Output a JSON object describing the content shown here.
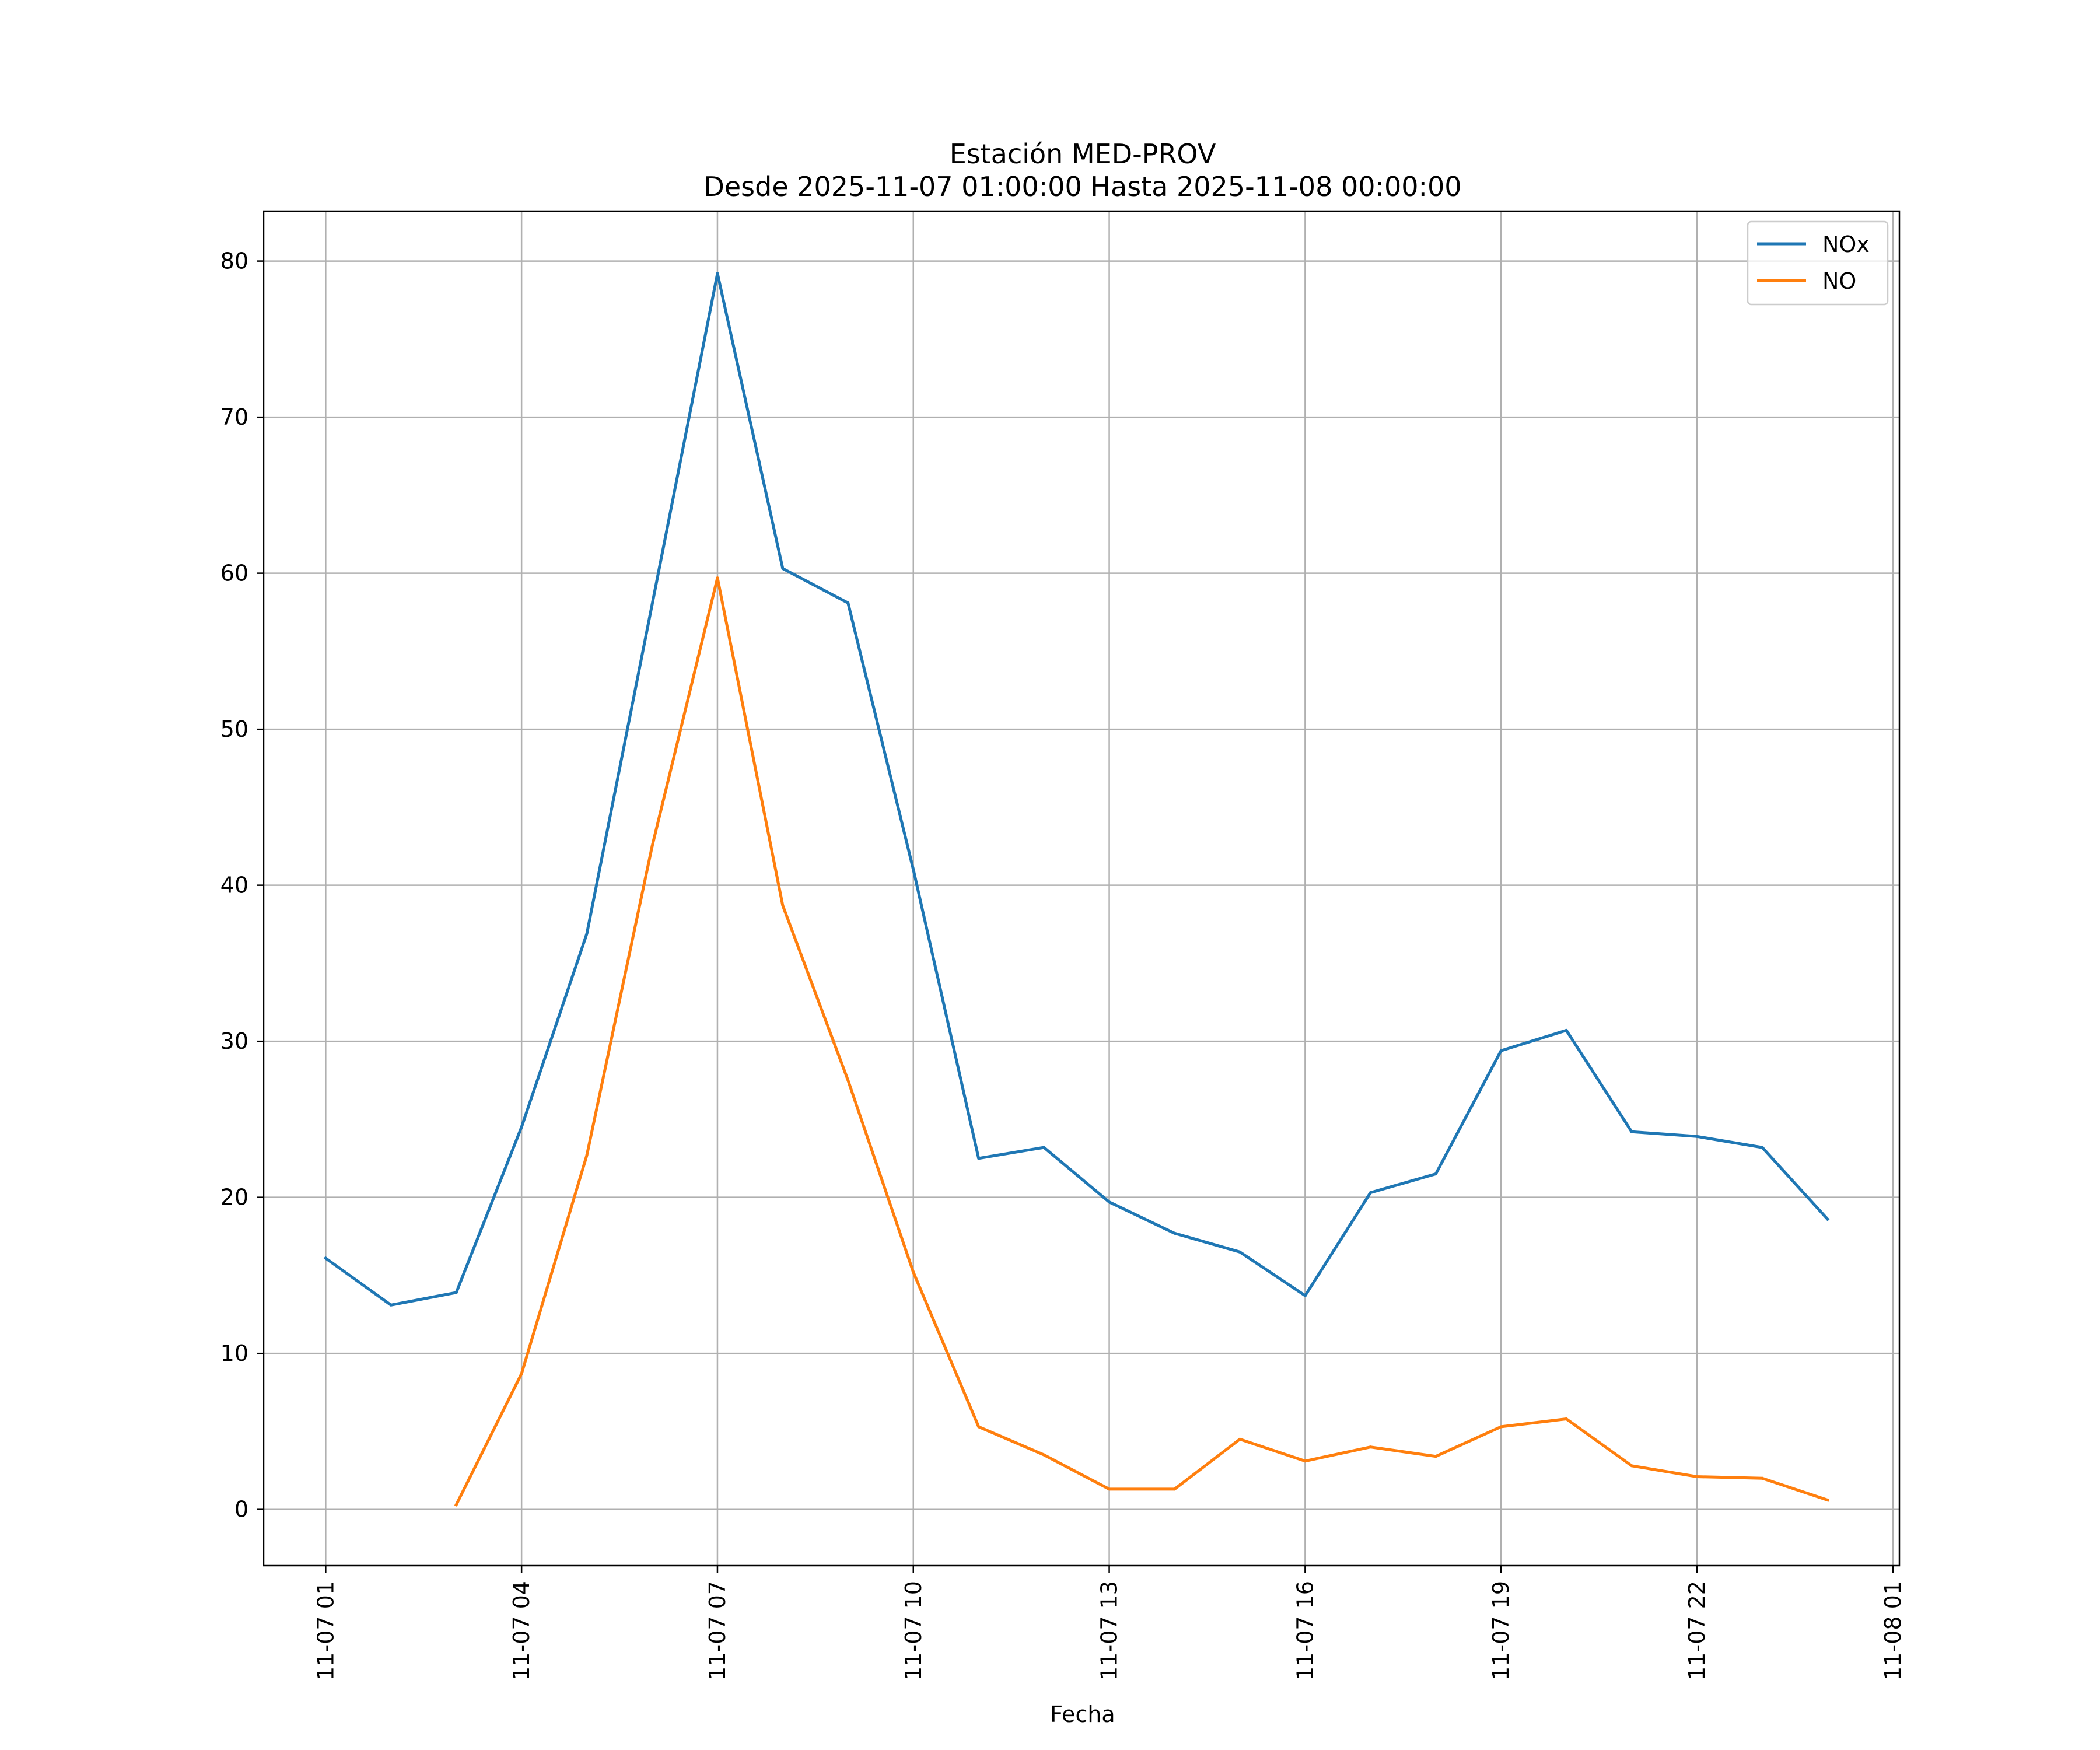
{
  "chart_data": {
    "type": "line",
    "title": "Estación MED-PROV",
    "subtitle": "Desde 2025-11-07 01:00:00 Hasta 2025-11-08 00:00:00",
    "xlabel": "Fecha",
    "ylabel": "",
    "x_hours": [
      1,
      2,
      3,
      4,
      5,
      6,
      7,
      8,
      9,
      10,
      11,
      12,
      13,
      14,
      15,
      16,
      17,
      18,
      19,
      20,
      21,
      22,
      23,
      24
    ],
    "xlim": [
      0.05,
      25.1
    ],
    "ylim": [
      -3.6,
      83.2
    ],
    "x_ticks": [
      1,
      4,
      7,
      10,
      13,
      16,
      19,
      22,
      25
    ],
    "x_tick_labels": [
      "11-07 01",
      "11-07 04",
      "11-07 07",
      "11-07 10",
      "11-07 13",
      "11-07 16",
      "11-07 19",
      "11-07 22",
      "11-08 01"
    ],
    "y_ticks": [
      0,
      10,
      20,
      30,
      40,
      50,
      60,
      70,
      80
    ],
    "y_tick_labels": [
      "0",
      "10",
      "20",
      "30",
      "40",
      "50",
      "60",
      "70",
      "80"
    ],
    "grid": true,
    "legend_position": "top-right",
    "series": [
      {
        "name": "NOx",
        "color": "#1f77b4",
        "values": [
          16.1,
          13.1,
          13.9,
          24.5,
          36.9,
          58.0,
          79.2,
          60.3,
          58.1,
          41.0,
          22.5,
          23.2,
          19.7,
          17.7,
          16.5,
          13.7,
          20.3,
          21.5,
          29.4,
          30.7,
          24.2,
          23.9,
          23.2,
          18.6
        ]
      },
      {
        "name": "NO",
        "color": "#ff7f0e",
        "values": [
          null,
          null,
          0.3,
          8.7,
          22.7,
          42.5,
          59.7,
          38.7,
          27.5,
          15.2,
          5.3,
          3.5,
          1.3,
          1.3,
          4.5,
          3.1,
          4.0,
          3.4,
          5.3,
          5.8,
          2.8,
          2.1,
          2.0,
          0.6
        ]
      }
    ]
  }
}
